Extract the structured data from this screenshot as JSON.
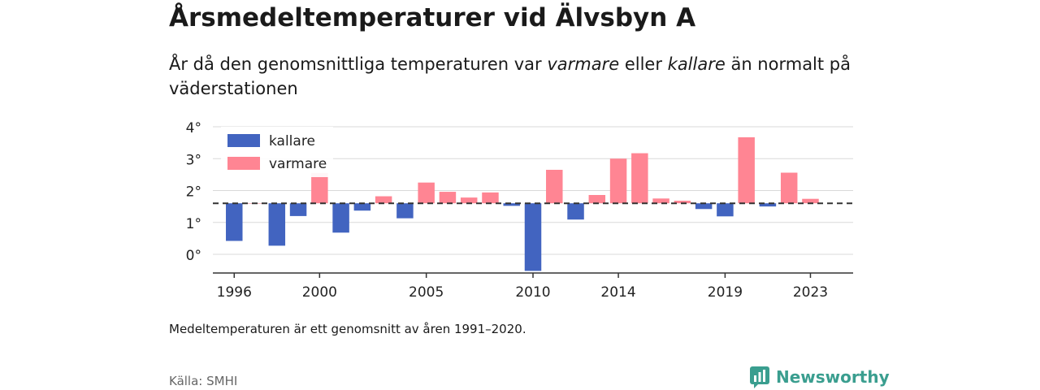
{
  "title": "Årsmedeltemperaturer vid Älvsbyn A",
  "subtitle": {
    "part1": "År då den genomsnittliga temperaturen var ",
    "word1": "varmare",
    "part2": " eller ",
    "word2": "kallare",
    "part3": " än normalt på väderstationen"
  },
  "note": "Medeltemperaturen är ett genomsnitt av åren 1991–2020.",
  "source": "Källa: SMHI",
  "brand": {
    "name": "Newsworthy",
    "icon": "bar-chart-speech-icon",
    "color": "#3a9e8f"
  },
  "chart_data": {
    "type": "bar",
    "baseline": 1.6,
    "ylim": [
      -0.5,
      4
    ],
    "yticks": [
      0,
      1,
      2,
      3,
      4
    ],
    "ytick_labels": [
      "0°",
      "1°",
      "2°",
      "3°",
      "4°"
    ],
    "xlim": [
      1995,
      2025
    ],
    "xticks": [
      1996,
      2000,
      2005,
      2010,
      2014,
      2019,
      2023
    ],
    "xtick_labels": [
      "1996",
      "2000",
      "2005",
      "2010",
      "2014",
      "2019",
      "2023"
    ],
    "legend": {
      "position": "top-left",
      "entries": [
        {
          "label": "kallare",
          "color": "#4264c0"
        },
        {
          "label": "varmare",
          "color": "#ff8593"
        }
      ]
    },
    "colors": {
      "kallare": "#4264c0",
      "varmare": "#ff8593"
    },
    "years": [
      1996,
      1997,
      1998,
      1999,
      2000,
      2001,
      2002,
      2003,
      2004,
      2005,
      2006,
      2007,
      2008,
      2009,
      2010,
      2011,
      2012,
      2013,
      2014,
      2015,
      2016,
      2017,
      2018,
      2019,
      2020,
      2021,
      2022,
      2023
    ],
    "values": [
      0.42,
      1.6,
      0.27,
      1.2,
      2.55,
      0.68,
      1.37,
      1.82,
      1.13,
      2.25,
      1.96,
      1.78,
      1.94,
      1.52,
      -0.52,
      2.65,
      1.09,
      1.86,
      3.0,
      3.17,
      1.75,
      1.68,
      1.42,
      1.19,
      3.67,
      1.5,
      2.56,
      1.74
    ]
  }
}
